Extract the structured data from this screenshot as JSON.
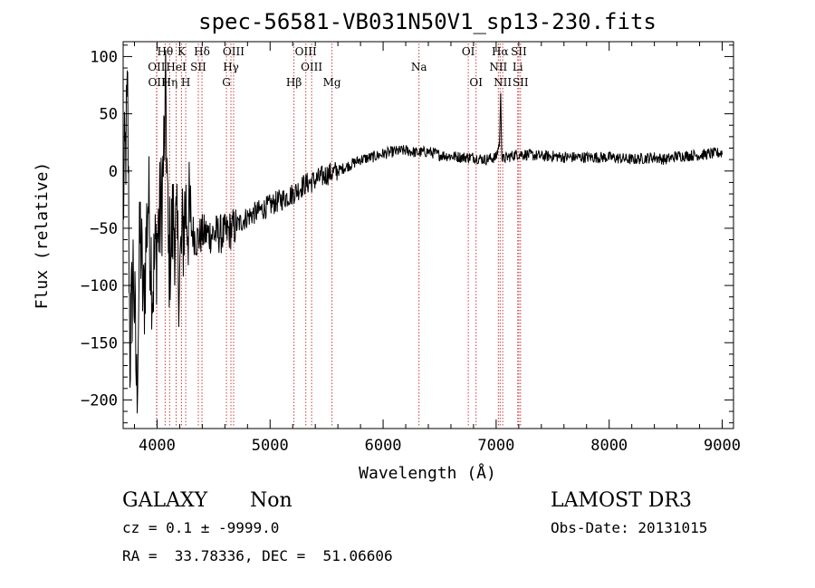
{
  "chart_data": {
    "type": "line",
    "title": "spec-56581-VB031N50V1_sp13-230.fits",
    "xlabel": "Wavelength (Å)",
    "ylabel": "Flux (relative)",
    "xlim": [
      3700,
      9100
    ],
    "ylim": [
      -225,
      113
    ],
    "xticks": [
      4000,
      5000,
      6000,
      7000,
      8000,
      9000
    ],
    "yticks": [
      -200,
      -150,
      -100,
      -50,
      0,
      50,
      100
    ],
    "line_color": "#000000",
    "marker_color": "#c83c3c",
    "grid": false,
    "spectrum_anchor_points": [
      [
        3700,
        -30
      ],
      [
        3740,
        60
      ],
      [
        3760,
        -160
      ],
      [
        3790,
        -80
      ],
      [
        3820,
        -195
      ],
      [
        3850,
        -50
      ],
      [
        3880,
        -120
      ],
      [
        3920,
        -20
      ],
      [
        3960,
        -100
      ],
      [
        4000,
        -60
      ],
      [
        4040,
        -30
      ],
      [
        4080,
        60
      ],
      [
        4100,
        -80
      ],
      [
        4150,
        -40
      ],
      [
        4200,
        -90
      ],
      [
        4250,
        -30
      ],
      [
        4300,
        -50
      ],
      [
        4350,
        -60
      ],
      [
        4400,
        -55
      ],
      [
        4500,
        -55
      ],
      [
        4600,
        -55
      ],
      [
        4700,
        -48
      ],
      [
        4800,
        -40
      ],
      [
        4900,
        -35
      ],
      [
        5000,
        -30
      ],
      [
        5100,
        -25
      ],
      [
        5200,
        -20
      ],
      [
        5300,
        -12
      ],
      [
        5400,
        -8
      ],
      [
        5500,
        -3
      ],
      [
        5600,
        0
      ],
      [
        5700,
        5
      ],
      [
        5800,
        10
      ],
      [
        5900,
        12
      ],
      [
        6000,
        15
      ],
      [
        6100,
        17
      ],
      [
        6200,
        18
      ],
      [
        6300,
        16
      ],
      [
        6400,
        17
      ],
      [
        6500,
        14
      ],
      [
        6600,
        13
      ],
      [
        6700,
        12
      ],
      [
        6800,
        12
      ],
      [
        6900,
        10
      ],
      [
        7000,
        12
      ],
      [
        7030,
        25
      ],
      [
        7040,
        68
      ],
      [
        7050,
        10
      ],
      [
        7100,
        12
      ],
      [
        7200,
        15
      ],
      [
        7300,
        14
      ],
      [
        7400,
        13
      ],
      [
        7500,
        13
      ],
      [
        7600,
        12
      ],
      [
        7800,
        12
      ],
      [
        8000,
        12
      ],
      [
        8200,
        10
      ],
      [
        8400,
        12
      ],
      [
        8500,
        10
      ],
      [
        8600,
        13
      ],
      [
        8800,
        14
      ],
      [
        8900,
        15
      ],
      [
        9000,
        16
      ]
    ],
    "spectral_lines": [
      {
        "label": "OII",
        "wavelength": 3727,
        "row": 1
      },
      {
        "label": "OII",
        "wavelength": 3729,
        "row": 2
      },
      {
        "label": "Hθ",
        "wavelength": 3798,
        "row": 0
      },
      {
        "label": "Hη",
        "wavelength": 3835,
        "row": 2
      },
      {
        "label": "HeI",
        "wavelength": 3889,
        "row": 1
      },
      {
        "label": "K",
        "wavelength": 3933,
        "row": 0
      },
      {
        "label": "H",
        "wavelength": 3968,
        "row": 2
      },
      {
        "label": "Hδ",
        "wavelength": 4102,
        "row": 0
      },
      {
        "label": "SII",
        "wavelength": 4072,
        "row": 1
      },
      {
        "label": "OIII",
        "wavelength": 4363,
        "row": 0
      },
      {
        "label": "Hγ",
        "wavelength": 4341,
        "row": 1
      },
      {
        "label": "G",
        "wavelength": 4304,
        "row": 2
      },
      {
        "label": "Hβ",
        "wavelength": 4861,
        "row": 2
      },
      {
        "label": "OIII",
        "wavelength": 4959,
        "row": 0
      },
      {
        "label": "OIII",
        "wavelength": 5007,
        "row": 1
      },
      {
        "label": "Mg",
        "wavelength": 5175,
        "row": 2
      },
      {
        "label": "Na",
        "wavelength": 5893,
        "row": 1
      },
      {
        "label": "OI",
        "wavelength": 6300,
        "row": 0
      },
      {
        "label": "OI",
        "wavelength": 6364,
        "row": 2
      },
      {
        "label": "Hα",
        "wavelength": 6563,
        "row": 0
      },
      {
        "label": "NII",
        "wavelength": 6548,
        "row": 1
      },
      {
        "label": "NII",
        "wavelength": 6584,
        "row": 2
      },
      {
        "label": "SII",
        "wavelength": 6717,
        "row": 0
      },
      {
        "label": "Li",
        "wavelength": 6708,
        "row": 1
      },
      {
        "label": "SII",
        "wavelength": 6731,
        "row": 2
      }
    ],
    "redshift_shift_factor": 1.072
  },
  "info": {
    "object_class": "GALAXY",
    "subclass": "Non",
    "survey": "LAMOST DR3",
    "cz_line": "cz = 0.1 ± -9999.0",
    "obs_date": "Obs-Date: 20131015",
    "radec": "RA =  33.78336, DEC =  51.06606"
  }
}
